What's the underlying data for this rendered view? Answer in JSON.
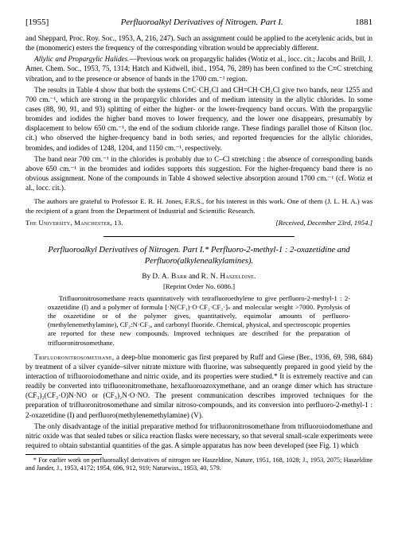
{
  "runningHead": {
    "year": "[1955]",
    "shortTitle": "Perfluoroalkyl Derivatives of Nitrogen. Part I.",
    "pageNumber": "1881"
  },
  "topBody": {
    "p1": "and Sheppard, Proc. Roy. Soc., 1953, A, 216, 247). Such an assignment could be applied to the acetylenic acids, but in the (monomeric) esters the frequency of the corresponding vibration would be appreciably different.",
    "p2lead": "Allylic and Propargylic Halides.",
    "p2": "—Previous work on propargylic halides (Wotiz et al., locc. cit.; Jacobs and Brill, J. Amer. Chem. Soc., 1953, 75, 1314; Hatch and Kidwell, ibid., 1954, 76, 289) has been confined to the C≡C stretching vibration, and to the presence or absence of bands in the 1700 cm.⁻¹ region.",
    "p3": "The results in Table 4 show that both the systems C≡C·CH₂Cl and CH=CH·CH₂Cl give two bands, near 1255 and 700 cm.⁻¹, which are strong in the propargylic chlorides and of medium intensity in the allylic chlorides. In some cases (88, 90, 91, and 93) splitting of either the higher- or the lower-frequency band occurs. With the propargylic bromides and iodides the higher band moves to lower frequency, and the lower one disappears, presumably by displacement to below 650 cm.⁻¹, the end of the sodium chloride range. These findings parallel those of Kitson (loc. cit.) who observed the higher-frequency band in both series, and reported frequencies for the allylic chlorides, bromides, and iodides of 1248, 1204, and 1150 cm.⁻¹, respectively.",
    "p4": "The band near 700 cm.⁻¹ in the chlorides is probably due to C–Cl stretching : the absence of corresponding bands above 650 cm.⁻¹ in the bromides and iodides supports this suggestion. For the higher-frequency band there is no obvious assignment. None of the compounds in Table 4 showed selective absorption around 1700 cm.⁻¹ (cf. Wotiz et al., locc. cit.)."
  },
  "ack": {
    "p1": "The authors are grateful to Professor E. R. H. Jones, F.R.S., for his interest in this work. One of them (J. L. H. A.) was the recipient of a grant from the Department of Industrial and Scientific Research."
  },
  "affil": {
    "left": "The University, Manchester, 13.",
    "right": "[Received, December 23rd, 1954.]"
  },
  "article": {
    "title": "Perfluoroalkyl Derivatives of Nitrogen. Part I.* Perfluoro-2-methyl-1 : 2-oxazetidine and Perfluoro(alkylenealkylamines).",
    "by": "By",
    "author1": "D. A. Barr",
    "and": "and",
    "author2": "R. N. Haszeldine.",
    "reprint": "[Reprint Order No. 6086.]"
  },
  "abstract": {
    "text": "Trifluoronitrosomethane reacts quantitatively with tetrafluoroethylene to give perfluoro-2-methyl-1 : 2-oxazetidine (I) and a polymer of formula [·N(CF₃)·O·CF₂·CF₂·]ₙ and molecular weight >7000. Pyrolysis of the oxazetidine or of the polymer gives, quantitatively, equimolar amounts of perfluoro-(methylenemethylamine), CF₂:N·CF₃, and carbonyl fluoride. Chemical, physical, and spectroscopic properties are reported for these new compounds. Improved techniques are described for the preparation of trifluoronitrosomethane."
  },
  "intro": {
    "lead": "Trifluoronitrosomethane,",
    "p1": " a deep-blue monomeric gas first prepared by Ruff and Giese (Ber., 1936, 69, 598, 684) by treatment of a silver cyanide–silver nitrate mixture with fluorine, was subsequently prepared in good yield by the interaction of trifluoroiodomethane and nitric oxide, and its properties were studied.* It is extremely reactive and can readily be converted into trifluoronitromethane, hexafluoroazoxymethane, and an orange dimer which has structure (CF₃)₂(CF₃·O)N·NO or (CF₃)₂N·O·NO. The present communication describes improved techniques for the preparation of trifluoronitrosomethane and similar nitroso-compounds, and its conversion into perfluoro-2-methyl-1 : 2-oxazetidine (I) and perfluoro(methylenemethylamine) (V).",
    "p2": "The only disadvantage of the initial preparative method for trifluoronitrosomethane from trifluoroiodomethane and nitric oxide was that sealed tubes or silica reaction flasks were necessary, so that several small-scale experiments were required to obtain substantial quantities of the gas. A simple apparatus has now been developed (see Fig. 1) which"
  },
  "footnotes": {
    "f1": "* For earlier work on perfluoroalkyl derivatives of nitrogen see Haszeldine, Nature, 1951, 168, 1028; J., 1953, 2075; Haszeldine and Jander, J., 1953, 4172; 1954, 696, 912, 919; Naturwiss., 1953, 40, 579."
  }
}
